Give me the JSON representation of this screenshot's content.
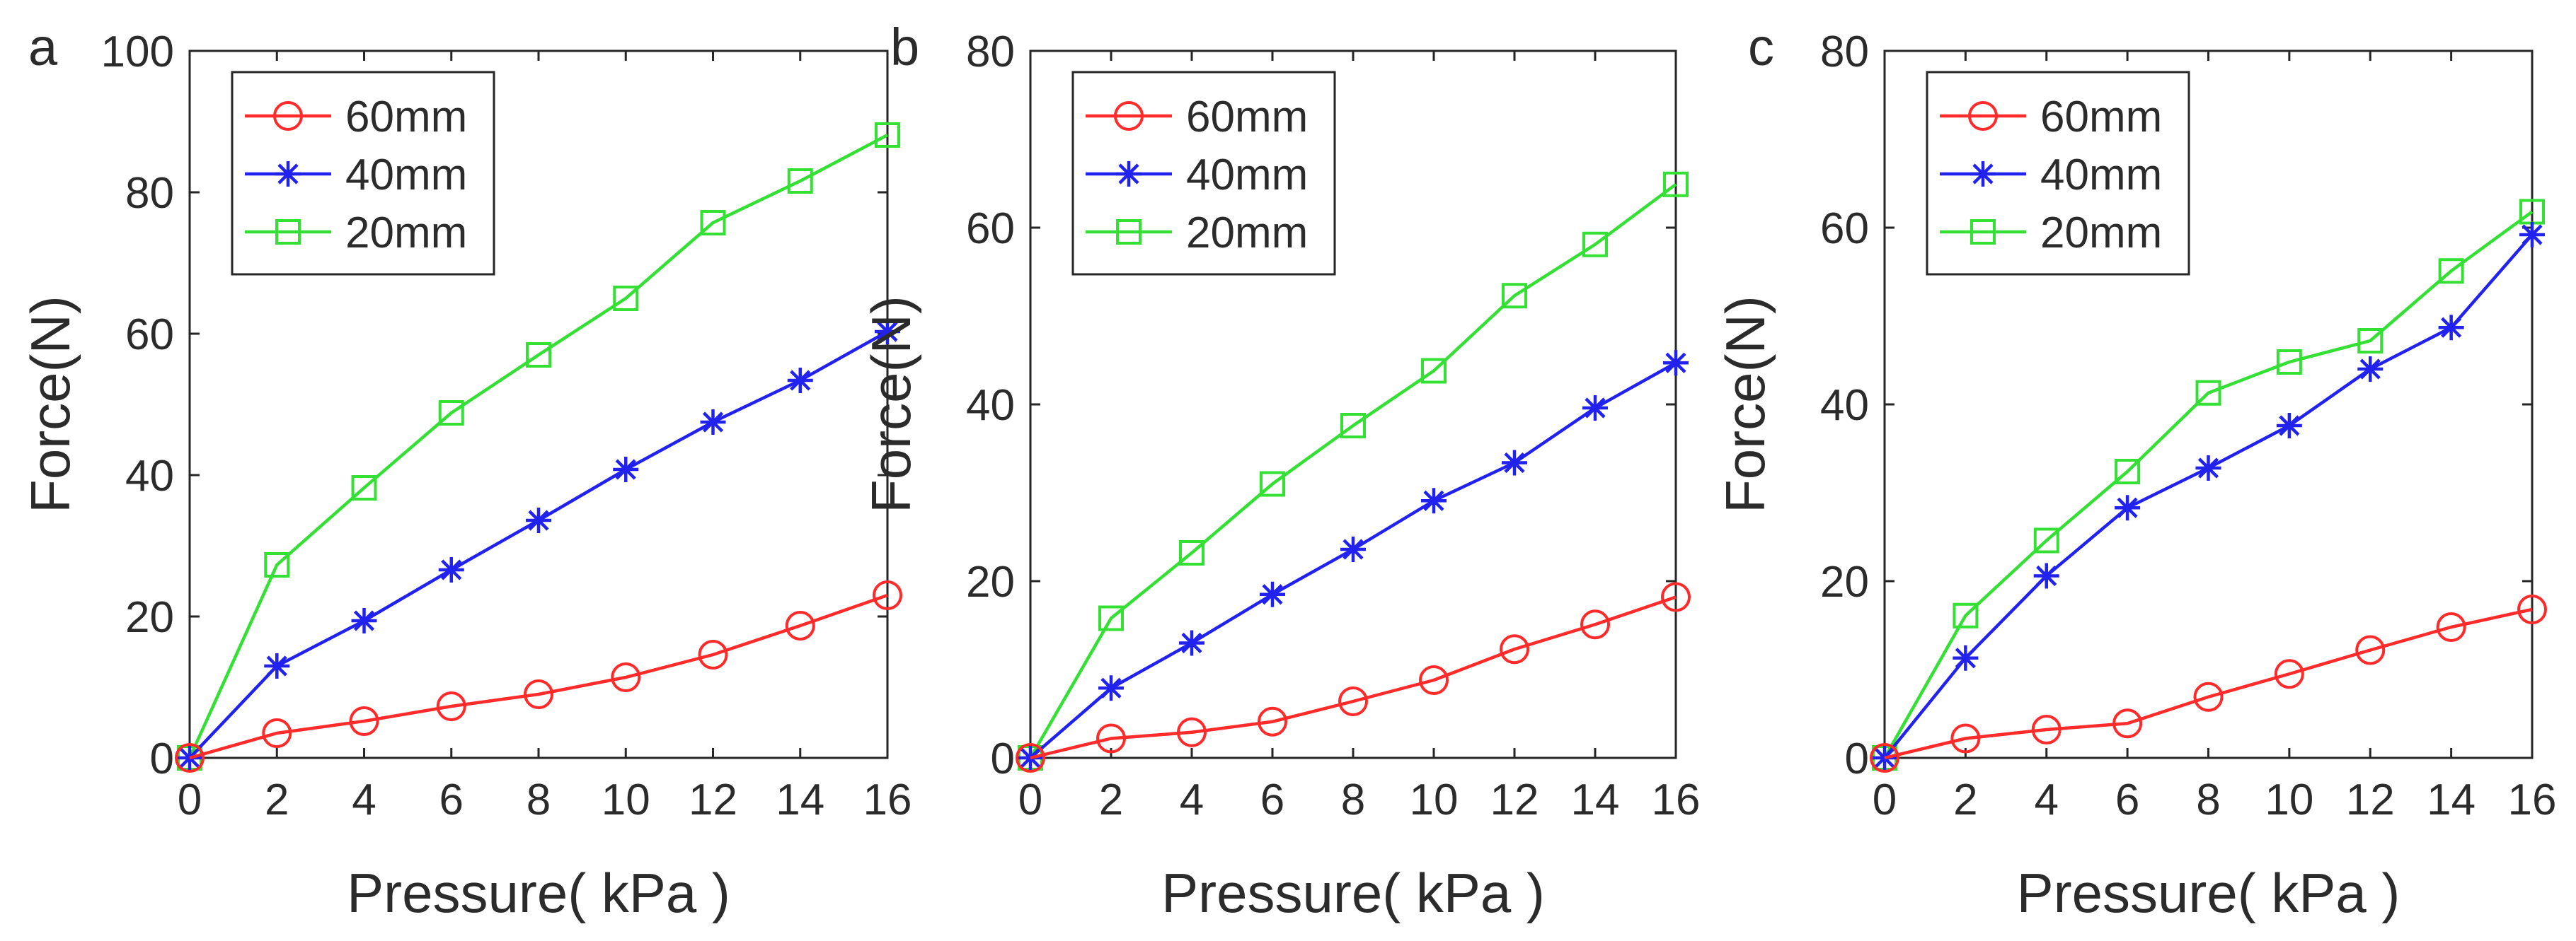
{
  "chart_data": [
    {
      "type": "line",
      "panel_label": "a",
      "xlabel": "Pressure( kPa )",
      "ylabel": "Force(N)",
      "xlim": [
        0,
        16
      ],
      "ylim": [
        0,
        100
      ],
      "xticks": [
        0,
        2,
        4,
        6,
        8,
        10,
        12,
        14,
        16
      ],
      "yticks": [
        0,
        20,
        40,
        60,
        80,
        100
      ],
      "legend_position": "top-left",
      "x": [
        0,
        2,
        4,
        6,
        8,
        10,
        12,
        14,
        16
      ],
      "series": [
        {
          "name": "60mm",
          "color": "#ff2a2a",
          "marker": "circle",
          "values": [
            0,
            3.5,
            5.2,
            7.3,
            9.0,
            11.4,
            14.6,
            18.7,
            23.0
          ]
        },
        {
          "name": "40mm",
          "color": "#2222ee",
          "marker": "asterisk",
          "values": [
            0,
            13.0,
            19.4,
            26.6,
            33.6,
            40.8,
            47.5,
            53.4,
            60.3
          ]
        },
        {
          "name": "20mm",
          "color": "#33e033",
          "marker": "square",
          "values": [
            0,
            27.3,
            38.2,
            48.8,
            57.0,
            65.0,
            75.7,
            81.6,
            88.1
          ]
        }
      ]
    },
    {
      "type": "line",
      "panel_label": "b",
      "xlabel": "Pressure( kPa )",
      "ylabel": "Force(N)",
      "xlim": [
        0,
        16
      ],
      "ylim": [
        0,
        80
      ],
      "xticks": [
        0,
        2,
        4,
        6,
        8,
        10,
        12,
        14,
        16
      ],
      "yticks": [
        0,
        20,
        40,
        60,
        80
      ],
      "legend_position": "top-left",
      "x": [
        0,
        2,
        4,
        6,
        8,
        10,
        12,
        14,
        16
      ],
      "series": [
        {
          "name": "60mm",
          "color": "#ff2a2a",
          "marker": "circle",
          "values": [
            0,
            2.2,
            2.9,
            4.1,
            6.4,
            8.8,
            12.3,
            15.1,
            18.2
          ]
        },
        {
          "name": "40mm",
          "color": "#2222ee",
          "marker": "asterisk",
          "values": [
            0,
            7.9,
            13.0,
            18.5,
            23.6,
            29.1,
            33.4,
            39.6,
            44.7
          ]
        },
        {
          "name": "20mm",
          "color": "#33e033",
          "marker": "square",
          "values": [
            0,
            15.8,
            23.2,
            31.0,
            37.6,
            43.8,
            52.3,
            58.1,
            64.9
          ]
        }
      ]
    },
    {
      "type": "line",
      "panel_label": "c",
      "xlabel": "Pressure( kPa )",
      "ylabel": "Force(N)",
      "xlim": [
        0,
        16
      ],
      "ylim": [
        0,
        80
      ],
      "xticks": [
        0,
        2,
        4,
        6,
        8,
        10,
        12,
        14,
        16
      ],
      "yticks": [
        0,
        20,
        40,
        60,
        80
      ],
      "legend_position": "top-left",
      "x": [
        0,
        2,
        4,
        6,
        8,
        10,
        12,
        14,
        16
      ],
      "series": [
        {
          "name": "60mm",
          "color": "#ff2a2a",
          "marker": "circle",
          "values": [
            0,
            2.2,
            3.2,
            3.9,
            6.9,
            9.5,
            12.2,
            14.8,
            16.8
          ]
        },
        {
          "name": "40mm",
          "color": "#2222ee",
          "marker": "asterisk",
          "values": [
            0,
            11.3,
            20.6,
            28.3,
            32.8,
            37.6,
            44.0,
            48.7,
            59.2
          ]
        },
        {
          "name": "20mm",
          "color": "#33e033",
          "marker": "square",
          "values": [
            0,
            16.1,
            24.6,
            32.4,
            41.3,
            44.8,
            47.2,
            55.1,
            61.8
          ]
        }
      ]
    }
  ]
}
